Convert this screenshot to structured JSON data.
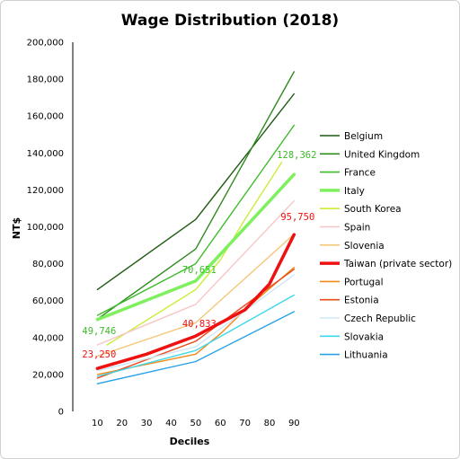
{
  "chart_data": {
    "type": "line",
    "title": "Wage Distribution (2018)",
    "xlabel": "Deciles",
    "ylabel": "NT$",
    "xlim": [
      0,
      95
    ],
    "ylim": [
      0,
      200000
    ],
    "x_ticks": [
      "10",
      "20",
      "30",
      "40",
      "50",
      "60",
      "70",
      "80",
      "90"
    ],
    "y_ticks": [
      "0",
      "20,000",
      "40,000",
      "60,000",
      "80,000",
      "100,000",
      "120,000",
      "140,000",
      "160,000",
      "180,000",
      "200,000"
    ],
    "grid": false,
    "legend_position": "right",
    "series": [
      {
        "name": "Belgium",
        "color": "#1f5a12",
        "width": 1.4,
        "points": [
          [
            10,
            66000
          ],
          [
            50,
            104000
          ],
          [
            90,
            172000
          ]
        ]
      },
      {
        "name": "United Kingdom",
        "color": "#2e8b1e",
        "width": 1.4,
        "points": [
          [
            10,
            50000
          ],
          [
            50,
            88000
          ],
          [
            90,
            184000
          ]
        ]
      },
      {
        "name": "France",
        "color": "#3dbb2a",
        "width": 1.4,
        "points": [
          [
            10,
            52000
          ],
          [
            50,
            80000
          ],
          [
            90,
            155000
          ]
        ]
      },
      {
        "name": "Italy",
        "color": "#7ef05e",
        "width": 3.5,
        "points": [
          [
            10,
            49746
          ],
          [
            50,
            70651
          ],
          [
            90,
            128362
          ]
        ]
      },
      {
        "name": "South Korea",
        "color": "#c8ee3a",
        "width": 1.4,
        "points": [
          [
            14,
            36000
          ],
          [
            50,
            66000
          ],
          [
            60,
            82000
          ],
          [
            70,
            104000
          ],
          [
            85,
            135000
          ]
        ]
      },
      {
        "name": "Spain",
        "color": "#f7c6c6",
        "width": 1.4,
        "points": [
          [
            10,
            36000
          ],
          [
            50,
            58000
          ],
          [
            90,
            114000
          ]
        ]
      },
      {
        "name": "Slovenia",
        "color": "#f5c87a",
        "width": 1.4,
        "points": [
          [
            10,
            30000
          ],
          [
            50,
            48000
          ],
          [
            90,
            96000
          ]
        ]
      },
      {
        "name": "Taiwan (private sector)",
        "color": "#ee1111",
        "width": 3.5,
        "points": [
          [
            10,
            23250
          ],
          [
            30,
            31000
          ],
          [
            50,
            40833
          ],
          [
            70,
            55000
          ],
          [
            80,
            69000
          ],
          [
            90,
            95750
          ]
        ]
      },
      {
        "name": "Portugal",
        "color": "#f08a18",
        "width": 1.4,
        "points": [
          [
            10,
            20000
          ],
          [
            50,
            31000
          ],
          [
            60,
            42000
          ],
          [
            70,
            55000
          ],
          [
            90,
            78000
          ]
        ]
      },
      {
        "name": "Estonia",
        "color": "#e94a1a",
        "width": 1.4,
        "points": [
          [
            10,
            18000
          ],
          [
            50,
            38000
          ],
          [
            90,
            77000
          ]
        ]
      },
      {
        "name": "Czech Republic",
        "color": "#cfe7f7",
        "width": 1.4,
        "points": [
          [
            10,
            22000
          ],
          [
            50,
            35000
          ],
          [
            90,
            74000
          ]
        ]
      },
      {
        "name": "Slovakia",
        "color": "#3ed8e8",
        "width": 1.4,
        "points": [
          [
            10,
            19000
          ],
          [
            50,
            33000
          ],
          [
            90,
            63000
          ]
        ]
      },
      {
        "name": "Lithuania",
        "color": "#2aa1e6",
        "width": 1.4,
        "points": [
          [
            10,
            15000
          ],
          [
            50,
            27000
          ],
          [
            90,
            54000
          ]
        ]
      }
    ],
    "data_labels": [
      {
        "text": "49,746",
        "x": 10,
        "y": 49746,
        "color": "#3dbb2a"
      },
      {
        "text": "70,651",
        "x": 50,
        "y": 70651,
        "color": "#3dbb2a"
      },
      {
        "text": "128,362",
        "x": 90,
        "y": 128362,
        "color": "#3dbb2a"
      },
      {
        "text": "23,250",
        "x": 10,
        "y": 23250,
        "color": "#ee1111"
      },
      {
        "text": "40,833",
        "x": 50,
        "y": 40833,
        "color": "#ee1111"
      },
      {
        "text": "95,750",
        "x": 90,
        "y": 95750,
        "color": "#ee1111"
      }
    ]
  }
}
